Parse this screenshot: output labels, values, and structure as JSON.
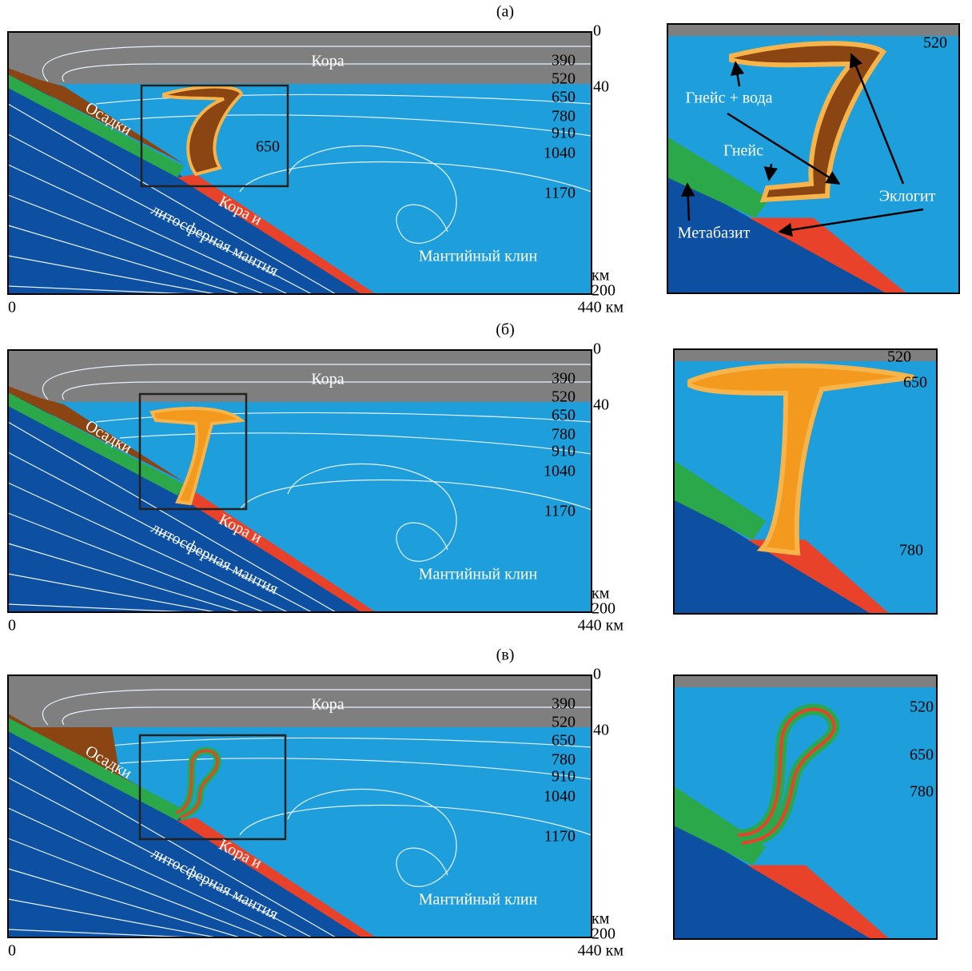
{
  "panels": [
    {
      "label": "(а)",
      "main": {
        "depth_ticks": [
          "0",
          "40",
          "200"
        ],
        "depth_unit": "км",
        "x_ticks": [
          "0",
          "440 км"
        ],
        "isotherms": [
          "390",
          "520",
          "650",
          "780",
          "910",
          "1040",
          "1170"
        ],
        "crust": "Кора",
        "sediments": "Осадки",
        "slab": [
          "Кора и",
          "литосферная мантия"
        ],
        "wedge": "Мантийный клин",
        "extra": "650"
      },
      "inset": {
        "labels": [
          "520",
          "Гнейс + вода",
          "Гнейс",
          "Эклогит",
          "Метабазит"
        ]
      }
    },
    {
      "label": "(б)",
      "main": {
        "depth_ticks": [
          "0",
          "40",
          "200"
        ],
        "depth_unit": "км",
        "x_ticks": [
          "0",
          "440 км"
        ],
        "isotherms": [
          "390",
          "520",
          "650",
          "780",
          "910",
          "1040",
          "1170"
        ],
        "crust": "Кора",
        "sediments": "Осадки",
        "slab": [
          "Кора и",
          "литосферная мантия"
        ],
        "wedge": "Мантийный клин"
      },
      "inset": {
        "labels": [
          "520",
          "650",
          "780"
        ]
      }
    },
    {
      "label": "(в)",
      "main": {
        "depth_ticks": [
          "0",
          "40",
          "200"
        ],
        "depth_unit": "км",
        "x_ticks": [
          "0",
          "440 км"
        ],
        "isotherms": [
          "390",
          "520",
          "650",
          "780",
          "910",
          "1040",
          "1170"
        ],
        "crust": "Кора",
        "sediments": "Осадки",
        "slab": [
          "Кора и",
          "литосферная мантия"
        ],
        "wedge": "Мантийный клин"
      },
      "inset": {
        "labels": [
          "520",
          "650",
          "780"
        ]
      }
    }
  ]
}
